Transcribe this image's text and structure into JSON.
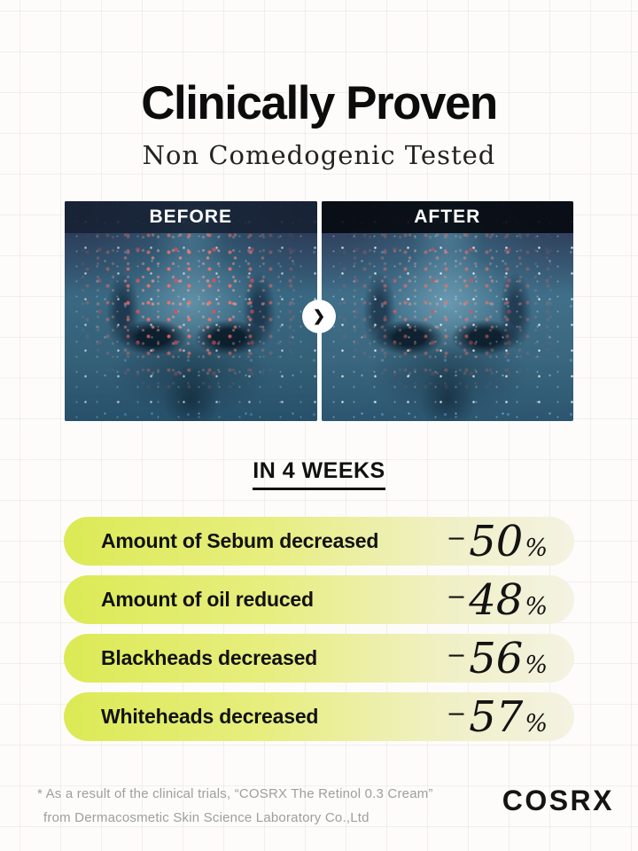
{
  "header": {
    "title": "Clinically Proven",
    "subtitle": "Non Comedogenic Tested"
  },
  "comparison": {
    "before_label": "BEFORE",
    "after_label": "AFTER",
    "arrow_glyph": "❯"
  },
  "results": {
    "heading": "IN 4 WEEKS",
    "stats": [
      {
        "label": "Amount of Sebum decreased",
        "sign": "−",
        "value": "50",
        "unit": "%"
      },
      {
        "label": "Amount of oil reduced",
        "sign": "−",
        "value": "48",
        "unit": "%"
      },
      {
        "label": "Blackheads decreased",
        "sign": "−",
        "value": "56",
        "unit": "%"
      },
      {
        "label": "Whiteheads decreased",
        "sign": "−",
        "value": "57",
        "unit": "%"
      }
    ]
  },
  "footnote": {
    "line1": "* As a result of the clinical trials, “COSRX The Retinol 0.3 Cream”",
    "line2": "from Dermacosmetic Skin Science Laboratory Co.,Ltd"
  },
  "brand": {
    "logo_text": "COSRX"
  },
  "colors": {
    "pill_gradient_start": "#dcea55",
    "pill_gradient_end": "#f4f2e2",
    "text_primary": "#111111",
    "footnote_gray": "#9e9e9e",
    "photo_base_teal": "#35607c",
    "before_bar": "#172133",
    "after_bar": "#080b11"
  }
}
